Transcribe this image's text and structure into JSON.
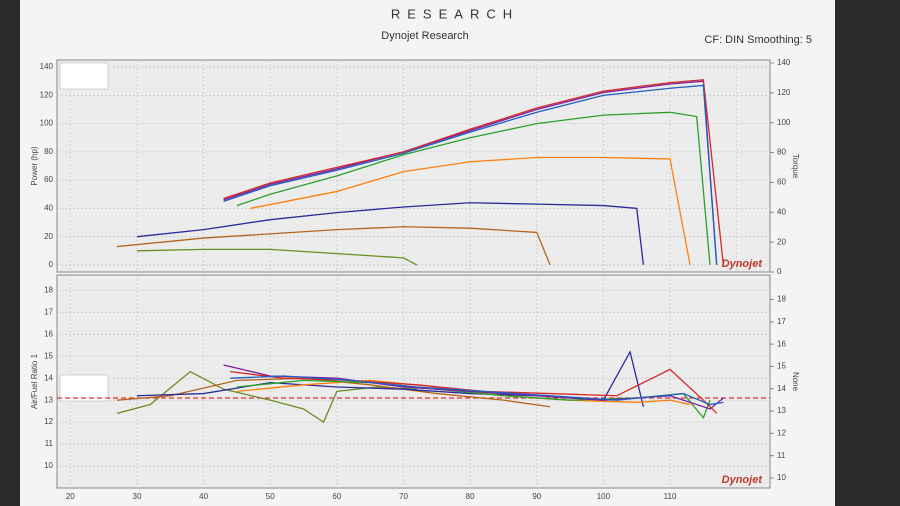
{
  "header": {
    "brand": "RESEARCH",
    "title": "Dynojet Research",
    "settings": "CF: DIN Smoothing: 5"
  },
  "chart_data": [
    {
      "type": "line",
      "ylabel": "Power (hp)",
      "y2label": "Torque",
      "watermark": "Dynojet",
      "xlim": [
        18,
        125
      ],
      "xticks": [
        20,
        30,
        40,
        50,
        60,
        70,
        80,
        90,
        100,
        110,
        120
      ],
      "show_xtick_labels": false,
      "ylim": [
        -5,
        145
      ],
      "yticks": [
        0,
        20,
        40,
        60,
        80,
        100,
        120,
        140
      ],
      "y2lim": [
        0,
        142
      ],
      "y2ticks": [
        0,
        20,
        40,
        60,
        80,
        100,
        120,
        140
      ],
      "grid": true,
      "series": [
        {
          "color": "#6b8e23",
          "x": [
            30,
            40,
            50,
            60,
            70,
            72
          ],
          "values": [
            10,
            11,
            11,
            8,
            5,
            0
          ]
        },
        {
          "color": "#b5651d",
          "x": [
            27,
            40,
            50,
            60,
            70,
            80,
            90,
            92
          ],
          "values": [
            13,
            19,
            22,
            25,
            27,
            26,
            23,
            0
          ]
        },
        {
          "color": "#2a2a9a",
          "x": [
            30,
            40,
            50,
            60,
            70,
            80,
            90,
            100,
            105,
            106
          ],
          "values": [
            20,
            25,
            32,
            37,
            41,
            44,
            43,
            42,
            40,
            0
          ]
        },
        {
          "color": "#ff7f0e",
          "x": [
            47,
            60,
            70,
            80,
            90,
            100,
            110,
            113
          ],
          "values": [
            40,
            52,
            66,
            73,
            76,
            76,
            75,
            0
          ]
        },
        {
          "color": "#2ca02c",
          "x": [
            45,
            50,
            60,
            70,
            80,
            90,
            100,
            110,
            114,
            116
          ],
          "values": [
            42,
            50,
            63,
            78,
            90,
            100,
            106,
            108,
            105,
            0
          ]
        },
        {
          "color": "#7a1fa2",
          "x": [
            43,
            50,
            60,
            70,
            80,
            90,
            100,
            110,
            115,
            117
          ],
          "values": [
            46,
            57,
            68,
            80,
            95,
            110,
            122,
            128,
            130,
            0
          ]
        },
        {
          "color": "#d62728",
          "x": [
            43,
            50,
            60,
            70,
            80,
            90,
            100,
            110,
            115,
            118
          ],
          "values": [
            47,
            58,
            69,
            80,
            96,
            111,
            123,
            129,
            131,
            0
          ]
        },
        {
          "color": "#1f5fbf",
          "x": [
            43,
            50,
            60,
            70,
            80,
            90,
            100,
            110,
            115,
            117
          ],
          "values": [
            45,
            56,
            67,
            79,
            94,
            108,
            120,
            125,
            127,
            0
          ]
        }
      ]
    },
    {
      "type": "line",
      "ylabel": "Air/Fuel Ratio 1",
      "y2label": "None",
      "watermark": "Dynojet",
      "xlim": [
        18,
        125
      ],
      "xticks": [
        20,
        30,
        40,
        50,
        60,
        70,
        80,
        90,
        100,
        110
      ],
      "show_xtick_labels": true,
      "ylim": [
        9,
        18.7
      ],
      "yticks": [
        10,
        11,
        12,
        13,
        14,
        15,
        16,
        17,
        18
      ],
      "y2lim": [
        9.55,
        19.1
      ],
      "y2ticks": [
        10,
        11,
        12,
        13,
        14,
        15,
        16,
        17,
        18
      ],
      "grid": true,
      "reference_line": 13.1,
      "reference_color": "#e03030",
      "series": [
        {
          "color": "#6b8e23",
          "x": [
            27,
            32,
            38,
            43,
            50,
            55,
            58,
            60,
            66,
            72
          ],
          "values": [
            12.4,
            12.8,
            14.3,
            13.5,
            13.0,
            12.6,
            12.0,
            13.4,
            13.6,
            13.5
          ]
        },
        {
          "color": "#b5651d",
          "x": [
            27,
            35,
            45,
            55,
            65,
            75,
            85,
            92
          ],
          "values": [
            13.0,
            13.2,
            13.9,
            14.0,
            13.7,
            13.3,
            13.0,
            12.7
          ]
        },
        {
          "color": "#2a2a9a",
          "x": [
            30,
            40,
            50,
            60,
            70,
            80,
            90,
            100,
            104,
            106
          ],
          "values": [
            13.2,
            13.3,
            13.8,
            13.6,
            13.5,
            13.3,
            13.2,
            13.0,
            15.2,
            12.7
          ]
        },
        {
          "color": "#ff7f0e",
          "x": [
            45,
            55,
            65,
            75,
            85,
            95,
            105,
            110,
            113
          ],
          "values": [
            13.4,
            13.7,
            13.9,
            13.6,
            13.2,
            13.0,
            12.9,
            13.0,
            12.8
          ]
        },
        {
          "color": "#2ca02c",
          "x": [
            45,
            55,
            65,
            75,
            85,
            95,
            105,
            112,
            115,
            116
          ],
          "values": [
            13.6,
            13.9,
            13.8,
            13.5,
            13.2,
            13.0,
            13.1,
            13.3,
            12.2,
            13.0
          ]
        },
        {
          "color": "#7a1fa2",
          "x": [
            43,
            50,
            60,
            70,
            80,
            90,
            100,
            110,
            116,
            118
          ],
          "values": [
            14.6,
            14.1,
            14.0,
            13.6,
            13.4,
            13.2,
            13.0,
            13.2,
            12.6,
            13.1
          ]
        },
        {
          "color": "#d62728",
          "x": [
            44,
            52,
            62,
            72,
            82,
            92,
            102,
            110,
            115,
            117
          ],
          "values": [
            14.3,
            14.0,
            13.9,
            13.7,
            13.4,
            13.3,
            13.2,
            14.4,
            13.0,
            12.4
          ]
        },
        {
          "color": "#1f5fbf",
          "x": [
            44,
            52,
            62,
            72,
            82,
            92,
            102,
            112,
            116,
            118
          ],
          "values": [
            14.0,
            14.1,
            13.9,
            13.6,
            13.4,
            13.2,
            13.0,
            13.3,
            12.8,
            12.9
          ]
        }
      ]
    }
  ]
}
